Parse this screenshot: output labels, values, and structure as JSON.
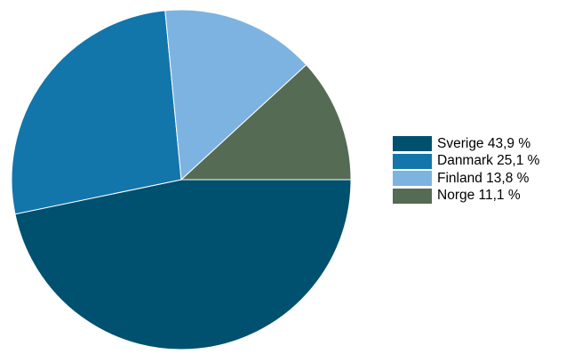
{
  "chart_data": {
    "type": "pie",
    "title": "",
    "start": "right",
    "direction": "clockwise",
    "legend_position": "right",
    "slices": [
      {
        "name": "Sverige",
        "value": 43.9,
        "color": "#00506f",
        "label": "Sverige 43,9 %"
      },
      {
        "name": "Danmark",
        "value": 25.1,
        "color": "#1276ab",
        "label": "Danmark 25,1 %"
      },
      {
        "name": "Finland",
        "value": 13.8,
        "color": "#7cb3e1",
        "label": "Finland 13,8 %"
      },
      {
        "name": "Norge",
        "value": 11.1,
        "color": "#556b53",
        "label": "Norge 11,1 %"
      }
    ]
  }
}
